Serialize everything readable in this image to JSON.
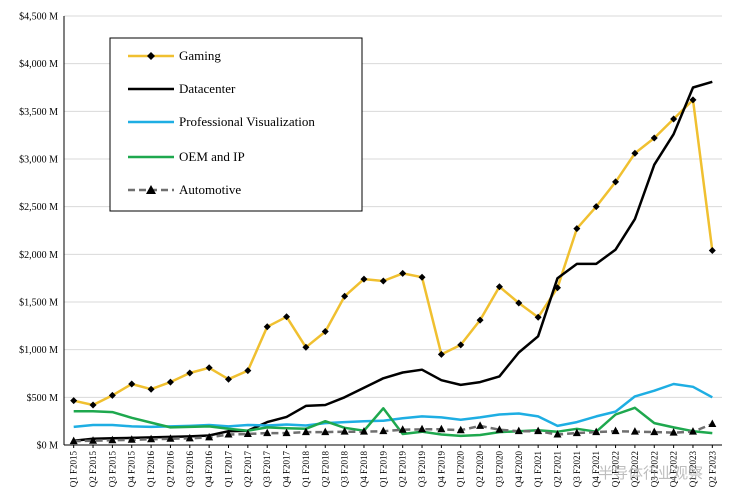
{
  "chart_data": {
    "type": "line",
    "title": "",
    "xlabel": "",
    "ylabel": "",
    "ylim": [
      0,
      4500
    ],
    "y_ticks": [
      "$0 M",
      "$500 M",
      "$1,000 M",
      "$1,500 M",
      "$2,000 M",
      "$2,500 M",
      "$3,000 M",
      "$3,500 M",
      "$4,000 M",
      "$4,500 M"
    ],
    "y_tick_values": [
      0,
      500,
      1000,
      1500,
      2000,
      2500,
      3000,
      3500,
      4000,
      4500
    ],
    "categories": [
      "Q1 F2015",
      "Q2 F2015",
      "Q3 F2015",
      "Q4 F2015",
      "Q1 F2016",
      "Q2 F2016",
      "Q3 F2016",
      "Q4 F2016",
      "Q1 F2017",
      "Q2 F2017",
      "Q3 F2017",
      "Q4 F2017",
      "Q1 F2018",
      "Q2 F2018",
      "Q3 F2018",
      "Q4 F2018",
      "Q1 F2019",
      "Q2 F2019",
      "Q3 F2019",
      "Q4 F2019",
      "Q1 F2020",
      "Q2 F2020",
      "Q3 F2020",
      "Q4 F2020",
      "Q1 F2021",
      "Q2 F2021",
      "Q3 F2021",
      "Q4 F2021",
      "Q1 F2022",
      "Q2 F2022",
      "Q3 F2022",
      "Q4 F2022",
      "Q1 F2023",
      "Q2 F2023"
    ],
    "grid": true,
    "legend_position": "top-left",
    "series": [
      {
        "name": "Gaming",
        "color": "#f0c030",
        "marker": "diamond",
        "values": [
          465,
          420,
          520,
          640,
          585,
          660,
          755,
          810,
          690,
          780,
          1240,
          1345,
          1025,
          1190,
          1560,
          1740,
          1720,
          1800,
          1760,
          950,
          1050,
          1310,
          1660,
          1490,
          1340,
          1650,
          2270,
          2500,
          2760,
          3060,
          3220,
          3420,
          3620,
          2040
        ]
      },
      {
        "name": "Datacenter",
        "color": "#000000",
        "marker": "none",
        "values": [
          45,
          65,
          70,
          75,
          80,
          85,
          90,
          100,
          145,
          150,
          240,
          295,
          410,
          420,
          500,
          600,
          700,
          760,
          790,
          680,
          630,
          660,
          720,
          970,
          1140,
          1750,
          1900,
          1900,
          2050,
          2370,
          2940,
          3260,
          3750,
          3810
        ]
      },
      {
        "name": "Professional Visualization",
        "color": "#1eaee3",
        "marker": "none",
        "values": [
          190,
          210,
          210,
          195,
          190,
          195,
          200,
          210,
          195,
          210,
          205,
          215,
          205,
          230,
          240,
          250,
          255,
          280,
          300,
          290,
          265,
          290,
          320,
          330,
          300,
          200,
          240,
          300,
          350,
          510,
          570,
          640,
          610,
          500
        ]
      },
      {
        "name": "OEM and IP",
        "color": "#1ea84e",
        "marker": "none",
        "values": [
          355,
          355,
          345,
          285,
          235,
          185,
          190,
          195,
          170,
          150,
          185,
          175,
          170,
          250,
          180,
          150,
          385,
          115,
          140,
          110,
          95,
          105,
          135,
          145,
          155,
          140,
          170,
          140,
          320,
          390,
          230,
          185,
          145,
          125
        ]
      },
      {
        "name": "Automotive",
        "color": "#6f6f6f",
        "marker": "triangle",
        "dashed": true,
        "values": [
          40,
          45,
          50,
          55,
          60,
          65,
          70,
          80,
          110,
          115,
          125,
          125,
          135,
          135,
          140,
          140,
          145,
          160,
          165,
          165,
          155,
          200,
          160,
          145,
          145,
          110,
          125,
          135,
          145,
          140,
          135,
          130,
          140,
          220
        ]
      }
    ]
  },
  "watermark_text": "半导体行业观察"
}
